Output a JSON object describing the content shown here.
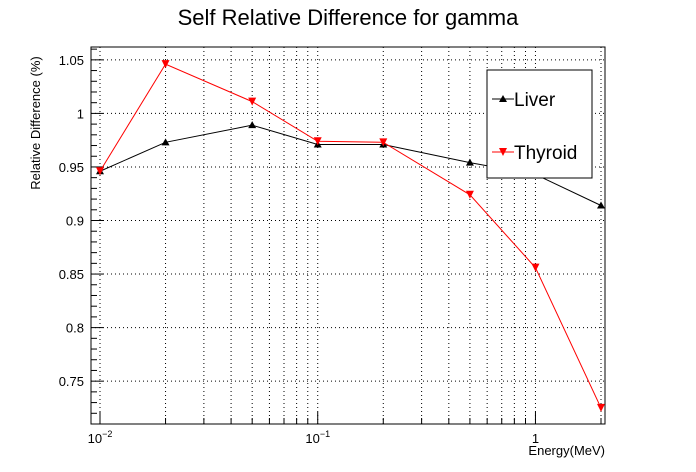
{
  "chart_data": {
    "type": "line",
    "title": "Self Relative Difference for gamma",
    "xlabel": "Energy(MeV)",
    "ylabel": "Relative Difference (%)",
    "xscale": "log",
    "xlim": [
      0.01,
      2.0
    ],
    "ylim": [
      0.71,
      1.062
    ],
    "x_ticks": [
      {
        "value": 0.01,
        "base": "10",
        "exp": "−2"
      },
      {
        "value": 0.1,
        "base": "10",
        "exp": "−1"
      },
      {
        "value": 1,
        "base": "1",
        "exp": ""
      }
    ],
    "y_ticks": [
      {
        "value": 0.75,
        "label": "0.75"
      },
      {
        "value": 0.8,
        "label": "0.8"
      },
      {
        "value": 0.85,
        "label": "0.85"
      },
      {
        "value": 0.9,
        "label": "0.9"
      },
      {
        "value": 0.95,
        "label": "0.95"
      },
      {
        "value": 1.0,
        "label": "1"
      },
      {
        "value": 1.05,
        "label": "1.05"
      }
    ],
    "grid": true,
    "legend_position": "top-right",
    "series": [
      {
        "name": "Liver",
        "color": "#000000",
        "marker": "triangle-up",
        "x": [
          0.01,
          0.02,
          0.05,
          0.1,
          0.2,
          0.5,
          1.0,
          2.0
        ],
        "y": [
          0.946,
          0.973,
          0.989,
          0.971,
          0.971,
          0.954,
          0.943,
          0.914
        ]
      },
      {
        "name": "Thyroid",
        "color": "#ff0000",
        "marker": "triangle-down",
        "x": [
          0.01,
          0.02,
          0.05,
          0.1,
          0.2,
          0.5,
          1.0,
          2.0
        ],
        "y": [
          0.946,
          1.046,
          1.011,
          0.974,
          0.973,
          0.924,
          0.856,
          0.725
        ]
      }
    ]
  }
}
